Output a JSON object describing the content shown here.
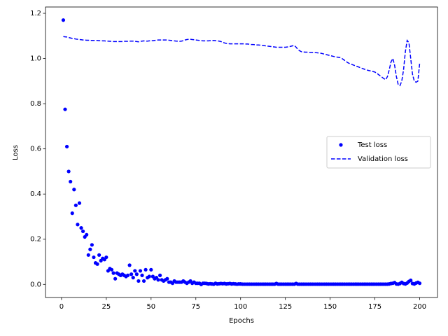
{
  "chart_data": {
    "type": "line",
    "xlabel": "Epochs",
    "ylabel": "Loss",
    "x": [
      1,
      2,
      3,
      4,
      5,
      6,
      7,
      8,
      9,
      10,
      11,
      12,
      13,
      14,
      15,
      16,
      17,
      18,
      19,
      20,
      21,
      22,
      23,
      24,
      25,
      26,
      27,
      28,
      29,
      30,
      31,
      32,
      33,
      34,
      35,
      36,
      37,
      38,
      39,
      40,
      41,
      42,
      43,
      44,
      45,
      46,
      47,
      48,
      49,
      50,
      51,
      52,
      53,
      54,
      55,
      56,
      57,
      58,
      59,
      60,
      61,
      62,
      63,
      64,
      65,
      66,
      67,
      68,
      69,
      70,
      71,
      72,
      73,
      74,
      75,
      76,
      77,
      78,
      79,
      80,
      81,
      82,
      83,
      84,
      85,
      86,
      87,
      88,
      89,
      90,
      91,
      92,
      93,
      94,
      95,
      96,
      97,
      98,
      99,
      100,
      101,
      102,
      103,
      104,
      105,
      106,
      107,
      108,
      109,
      110,
      111,
      112,
      113,
      114,
      115,
      116,
      117,
      118,
      119,
      120,
      121,
      122,
      123,
      124,
      125,
      126,
      127,
      128,
      129,
      130,
      131,
      132,
      133,
      134,
      135,
      136,
      137,
      138,
      139,
      140,
      141,
      142,
      143,
      144,
      145,
      146,
      147,
      148,
      149,
      150,
      151,
      152,
      153,
      154,
      155,
      156,
      157,
      158,
      159,
      160,
      161,
      162,
      163,
      164,
      165,
      166,
      167,
      168,
      169,
      170,
      171,
      172,
      173,
      174,
      175,
      176,
      177,
      178,
      179,
      180,
      181,
      182,
      183,
      184,
      185,
      186,
      187,
      188,
      189,
      190,
      191,
      192,
      193,
      194,
      195,
      196,
      197,
      198,
      199,
      200
    ],
    "series": [
      {
        "name": "Test loss",
        "color": "#0000ff",
        "marker": "o",
        "linestyle": "none",
        "values": [
          1.17,
          0.775,
          0.61,
          0.5,
          0.455,
          0.315,
          0.42,
          0.35,
          0.265,
          0.36,
          0.25,
          0.235,
          0.21,
          0.22,
          0.13,
          0.155,
          0.175,
          0.12,
          0.095,
          0.09,
          0.13,
          0.105,
          0.115,
          0.11,
          0.12,
          0.06,
          0.07,
          0.065,
          0.05,
          0.025,
          0.05,
          0.045,
          0.04,
          0.045,
          0.04,
          0.035,
          0.04,
          0.085,
          0.045,
          0.03,
          0.06,
          0.045,
          0.015,
          0.06,
          0.04,
          0.015,
          0.065,
          0.03,
          0.035,
          0.065,
          0.035,
          0.025,
          0.03,
          0.02,
          0.04,
          0.02,
          0.015,
          0.02,
          0.025,
          0.01,
          0.01,
          0.005,
          0.015,
          0.01,
          0.01,
          0.01,
          0.01,
          0.015,
          0.01,
          0.005,
          0.01,
          0.015,
          0.005,
          0.01,
          0.005,
          0.005,
          0.005,
          0.0,
          0.005,
          0.005,
          0.004,
          0.002,
          0.003,
          0.002,
          0.001,
          0.005,
          0.002,
          0.003,
          0.004,
          0.003,
          0.004,
          0.002,
          0.003,
          0.004,
          0.002,
          0.003,
          0.002,
          0.001,
          0.002,
          0.002,
          0.001,
          0.001,
          0.001,
          0.001,
          0.001,
          0.001,
          0.001,
          0.001,
          0.001,
          0.001,
          0.001,
          0.001,
          0.001,
          0.001,
          0.001,
          0.001,
          0.001,
          0.001,
          0.001,
          0.004,
          0.001,
          0.001,
          0.001,
          0.001,
          0.001,
          0.001,
          0.001,
          0.001,
          0.001,
          0.001,
          0.004,
          0.001,
          0.001,
          0.001,
          0.001,
          0.001,
          0.001,
          0.001,
          0.001,
          0.001,
          0.001,
          0.001,
          0.001,
          0.001,
          0.001,
          0.001,
          0.001,
          0.001,
          0.001,
          0.001,
          0.001,
          0.001,
          0.001,
          0.001,
          0.001,
          0.001,
          0.001,
          0.001,
          0.001,
          0.001,
          0.001,
          0.001,
          0.001,
          0.001,
          0.001,
          0.001,
          0.001,
          0.001,
          0.001,
          0.001,
          0.001,
          0.001,
          0.001,
          0.001,
          0.001,
          0.001,
          0.001,
          0.001,
          0.001,
          0.001,
          0.001,
          0.001,
          0.002,
          0.004,
          0.005,
          0.008,
          0.002,
          0.001,
          0.004,
          0.009,
          0.004,
          0.002,
          0.006,
          0.013,
          0.018,
          0.004,
          0.002,
          0.006,
          0.009,
          0.005
        ]
      },
      {
        "name": "Validation loss",
        "color": "#0000ff",
        "marker": "none",
        "linestyle": "dashed",
        "values": [
          1.097,
          1.096,
          1.095,
          1.093,
          1.091,
          1.089,
          1.088,
          1.086,
          1.085,
          1.084,
          1.083,
          1.082,
          1.082,
          1.081,
          1.081,
          1.08,
          1.08,
          1.08,
          1.08,
          1.08,
          1.079,
          1.079,
          1.078,
          1.078,
          1.077,
          1.077,
          1.076,
          1.076,
          1.075,
          1.075,
          1.075,
          1.075,
          1.075,
          1.075,
          1.076,
          1.076,
          1.076,
          1.077,
          1.077,
          1.077,
          1.076,
          1.075,
          1.074,
          1.076,
          1.077,
          1.078,
          1.077,
          1.077,
          1.078,
          1.078,
          1.079,
          1.08,
          1.081,
          1.082,
          1.082,
          1.082,
          1.082,
          1.082,
          1.082,
          1.081,
          1.08,
          1.079,
          1.078,
          1.077,
          1.077,
          1.076,
          1.077,
          1.079,
          1.082,
          1.084,
          1.085,
          1.085,
          1.084,
          1.083,
          1.082,
          1.081,
          1.08,
          1.079,
          1.078,
          1.078,
          1.078,
          1.078,
          1.079,
          1.079,
          1.08,
          1.079,
          1.078,
          1.077,
          1.075,
          1.072,
          1.069,
          1.067,
          1.066,
          1.065,
          1.065,
          1.065,
          1.065,
          1.065,
          1.065,
          1.065,
          1.065,
          1.065,
          1.064,
          1.064,
          1.063,
          1.062,
          1.062,
          1.061,
          1.06,
          1.06,
          1.059,
          1.058,
          1.057,
          1.056,
          1.055,
          1.054,
          1.053,
          1.052,
          1.051,
          1.05,
          1.05,
          1.05,
          1.05,
          1.05,
          1.05,
          1.051,
          1.052,
          1.054,
          1.056,
          1.058,
          1.05,
          1.04,
          1.034,
          1.03,
          1.029,
          1.028,
          1.028,
          1.027,
          1.027,
          1.027,
          1.026,
          1.026,
          1.025,
          1.024,
          1.023,
          1.021,
          1.019,
          1.017,
          1.015,
          1.013,
          1.011,
          1.009,
          1.007,
          1.006,
          1.005,
          1.003,
          0.998,
          0.992,
          0.986,
          0.981,
          0.977,
          0.974,
          0.971,
          0.968,
          0.965,
          0.962,
          0.959,
          0.956,
          0.953,
          0.95,
          0.948,
          0.946,
          0.944,
          0.942,
          0.94,
          0.935,
          0.929,
          0.923,
          0.917,
          0.911,
          0.906,
          0.92,
          0.95,
          0.985,
          1.0,
          0.97,
          0.92,
          0.885,
          0.88,
          0.9,
          0.95,
          1.03,
          1.08,
          1.07,
          1.0,
          0.93,
          0.9,
          0.895,
          0.9,
          0.98
        ]
      }
    ],
    "xlim": [
      -8.95,
      209.95
    ],
    "xticks": [
      0,
      25,
      50,
      75,
      100,
      125,
      150,
      175,
      200
    ],
    "ylim": [
      -0.058,
      1.228
    ],
    "yticks": [
      {
        "value": 0,
        "label": "0.0"
      },
      {
        "value": 0.2,
        "label": "0.2"
      },
      {
        "value": 0.4,
        "label": "0.4"
      },
      {
        "value": 0.6,
        "label": "0.6"
      },
      {
        "value": 0.8,
        "label": "0.8"
      },
      {
        "value": 1.0,
        "label": "1.0"
      },
      {
        "value": 1.2,
        "label": "1.2"
      }
    ],
    "legend": "center right"
  }
}
